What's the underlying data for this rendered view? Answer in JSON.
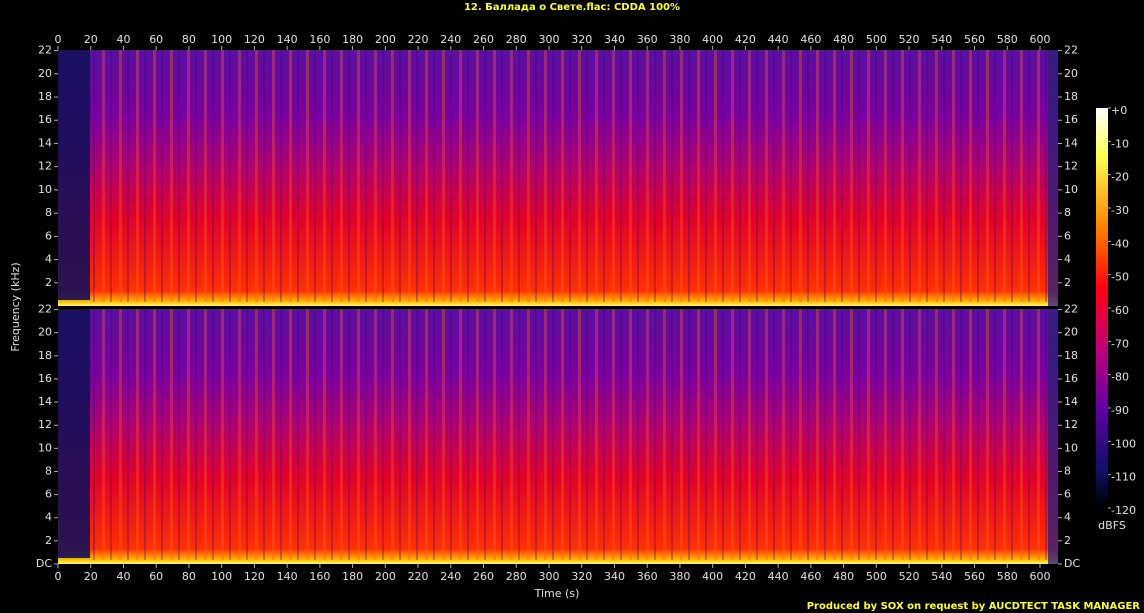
{
  "chart_data": [
    {
      "type": "spectrogram",
      "title": "12. Баллада о Свете.flac: CDDA 100%",
      "ylabel": "Frequency (kHz)",
      "xlim": [
        0,
        611
      ],
      "xticks": [
        0,
        20,
        40,
        60,
        80,
        100,
        120,
        140,
        160,
        180,
        200,
        220,
        240,
        260,
        280,
        300,
        320,
        340,
        360,
        380,
        400,
        420,
        440,
        460,
        480,
        500,
        520,
        540,
        560,
        580,
        600
      ],
      "ylim": [
        0,
        22.05
      ],
      "yticks": [
        2,
        4,
        6,
        8,
        10,
        12,
        14,
        16,
        18,
        20,
        22
      ]
    },
    {
      "type": "spectrogram",
      "xlabel": "Time (s)",
      "xlim": [
        0,
        611
      ],
      "xticks": [
        0,
        20,
        40,
        60,
        80,
        100,
        120,
        140,
        160,
        180,
        200,
        220,
        240,
        260,
        280,
        300,
        320,
        340,
        360,
        380,
        400,
        420,
        440,
        460,
        480,
        500,
        520,
        540,
        560,
        580,
        600
      ],
      "ylim": [
        0,
        22.05
      ],
      "yticks": [
        {
          "value": 0,
          "label": "DC"
        },
        2,
        4,
        6,
        8,
        10,
        12,
        14,
        16,
        18,
        20,
        22
      ]
    },
    {
      "type": "colorbar",
      "label": "dBFS",
      "zlim": [
        -120,
        0
      ],
      "zticks": [
        {
          "value": 0,
          "label": "+0"
        },
        -10,
        -20,
        -30,
        -40,
        -50,
        -60,
        -70,
        -80,
        -90,
        -100,
        -110,
        -120
      ]
    }
  ],
  "footer": "Produced by SOX on request by AUCDTECT TASK MANAGER"
}
